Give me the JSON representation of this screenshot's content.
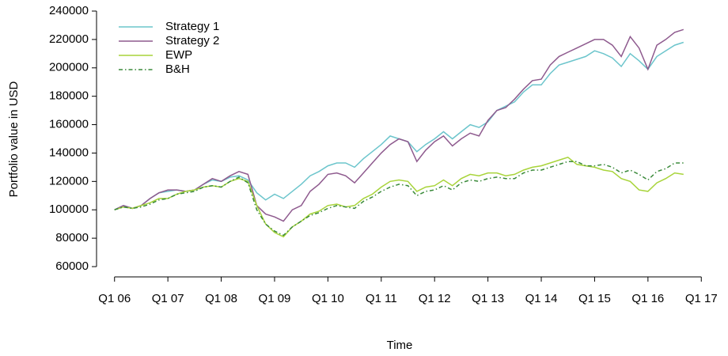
{
  "chart_data": {
    "type": "line",
    "xlabel": "Time",
    "ylabel": "Portfolio value in USD",
    "x": [
      2006,
      2006.167,
      2006.333,
      2006.5,
      2006.667,
      2006.833,
      2007,
      2007.167,
      2007.333,
      2007.5,
      2007.667,
      2007.833,
      2008,
      2008.167,
      2008.333,
      2008.5,
      2008.667,
      2008.833,
      2009,
      2009.167,
      2009.333,
      2009.5,
      2009.667,
      2009.833,
      2010,
      2010.167,
      2010.333,
      2010.5,
      2010.667,
      2010.833,
      2011,
      2011.167,
      2011.333,
      2011.5,
      2011.667,
      2011.833,
      2012,
      2012.167,
      2012.333,
      2012.5,
      2012.667,
      2012.833,
      2013,
      2013.167,
      2013.333,
      2013.5,
      2013.667,
      2013.833,
      2014,
      2014.167,
      2014.333,
      2014.5,
      2014.667,
      2014.833,
      2015,
      2015.167,
      2015.333,
      2015.5,
      2015.667,
      2015.833,
      2016,
      2016.167,
      2016.333,
      2016.5,
      2016.667
    ],
    "series": [
      {
        "name": "Strategy 1",
        "color": "#6cc5cc",
        "linestyle": "solid",
        "values": [
          100000,
          103000,
          101000,
          103000,
          108000,
          112000,
          113000,
          114000,
          113000,
          114000,
          118000,
          121000,
          120000,
          123000,
          124000,
          121000,
          112000,
          107000,
          111000,
          108000,
          113000,
          118000,
          124000,
          127000,
          131000,
          133000,
          133000,
          130000,
          136000,
          141000,
          146000,
          152000,
          150000,
          148000,
          141000,
          146000,
          150000,
          155000,
          150000,
          155000,
          160000,
          158000,
          162000,
          170000,
          173000,
          176000,
          183000,
          188000,
          188000,
          196000,
          202000,
          204000,
          206000,
          208000,
          212000,
          210000,
          207000,
          201000,
          210000,
          205000,
          199000,
          208000,
          212000,
          216000,
          218000
        ]
      },
      {
        "name": "Strategy 2",
        "color": "#8e5a8e",
        "linestyle": "solid",
        "values": [
          100000,
          103000,
          101000,
          103000,
          108000,
          112000,
          114000,
          114000,
          113000,
          114000,
          118000,
          122000,
          120000,
          124000,
          127000,
          125000,
          103000,
          97000,
          95000,
          92000,
          100000,
          103000,
          113000,
          118000,
          125000,
          126000,
          124000,
          119000,
          126000,
          133000,
          140000,
          146000,
          150000,
          148000,
          134000,
          142000,
          148000,
          152000,
          145000,
          150000,
          154000,
          152000,
          163000,
          170000,
          172000,
          178000,
          185000,
          191000,
          192000,
          202000,
          208000,
          211000,
          214000,
          217000,
          220000,
          220000,
          216000,
          208000,
          222000,
          214000,
          199000,
          216000,
          220000,
          225000,
          227000
        ]
      },
      {
        "name": "EWP",
        "color": "#a8d43a",
        "linestyle": "solid",
        "values": [
          100000,
          102000,
          101000,
          103000,
          105000,
          108000,
          108000,
          111000,
          113000,
          114000,
          116000,
          117000,
          116000,
          120000,
          122000,
          120000,
          103000,
          90000,
          84000,
          81000,
          88000,
          92000,
          97000,
          99000,
          103000,
          104000,
          102000,
          103000,
          108000,
          111000,
          116000,
          120000,
          121000,
          120000,
          113000,
          116000,
          117000,
          121000,
          117000,
          122000,
          125000,
          124000,
          126000,
          126000,
          124000,
          125000,
          128000,
          130000,
          131000,
          133000,
          135000,
          137000,
          132000,
          131000,
          130000,
          128000,
          127000,
          122000,
          120000,
          114000,
          113000,
          119000,
          122000,
          126000,
          125000
        ]
      },
      {
        "name": "B&H",
        "color": "#3a8a3a",
        "linestyle": "dashdot",
        "values": [
          100000,
          102000,
          101000,
          102000,
          104000,
          107000,
          108000,
          111000,
          112000,
          113000,
          116000,
          117000,
          116000,
          120000,
          123000,
          119000,
          100000,
          90000,
          85000,
          82000,
          88000,
          92000,
          96000,
          98000,
          101000,
          103000,
          102000,
          101000,
          106000,
          109000,
          113000,
          116000,
          118000,
          117000,
          110000,
          113000,
          114000,
          117000,
          114000,
          119000,
          121000,
          120000,
          122000,
          123000,
          122000,
          122000,
          126000,
          128000,
          128000,
          130000,
          132000,
          134000,
          134000,
          131000,
          131000,
          132000,
          130000,
          126000,
          128000,
          125000,
          121000,
          127000,
          129000,
          133000,
          133000
        ]
      }
    ],
    "xlim": [
      2005.9,
      2017.1
    ],
    "xticks": [
      {
        "value": 2006,
        "label": "Q1 06"
      },
      {
        "value": 2007,
        "label": "Q1 07"
      },
      {
        "value": 2008,
        "label": "Q1 08"
      },
      {
        "value": 2009,
        "label": "Q1 09"
      },
      {
        "value": 2010,
        "label": "Q1 10"
      },
      {
        "value": 2011,
        "label": "Q1 11"
      },
      {
        "value": 2012,
        "label": "Q1 12"
      },
      {
        "value": 2013,
        "label": "Q1 13"
      },
      {
        "value": 2014,
        "label": "Q1 14"
      },
      {
        "value": 2015,
        "label": "Q1 15"
      },
      {
        "value": 2016,
        "label": "Q1 16"
      },
      {
        "value": 2017,
        "label": "Q1 17"
      }
    ],
    "ylim": [
      60000,
      240000
    ],
    "yticks": [
      60000,
      80000,
      100000,
      120000,
      140000,
      160000,
      180000,
      200000,
      220000,
      240000
    ],
    "grid": false,
    "legend": "top-left"
  }
}
